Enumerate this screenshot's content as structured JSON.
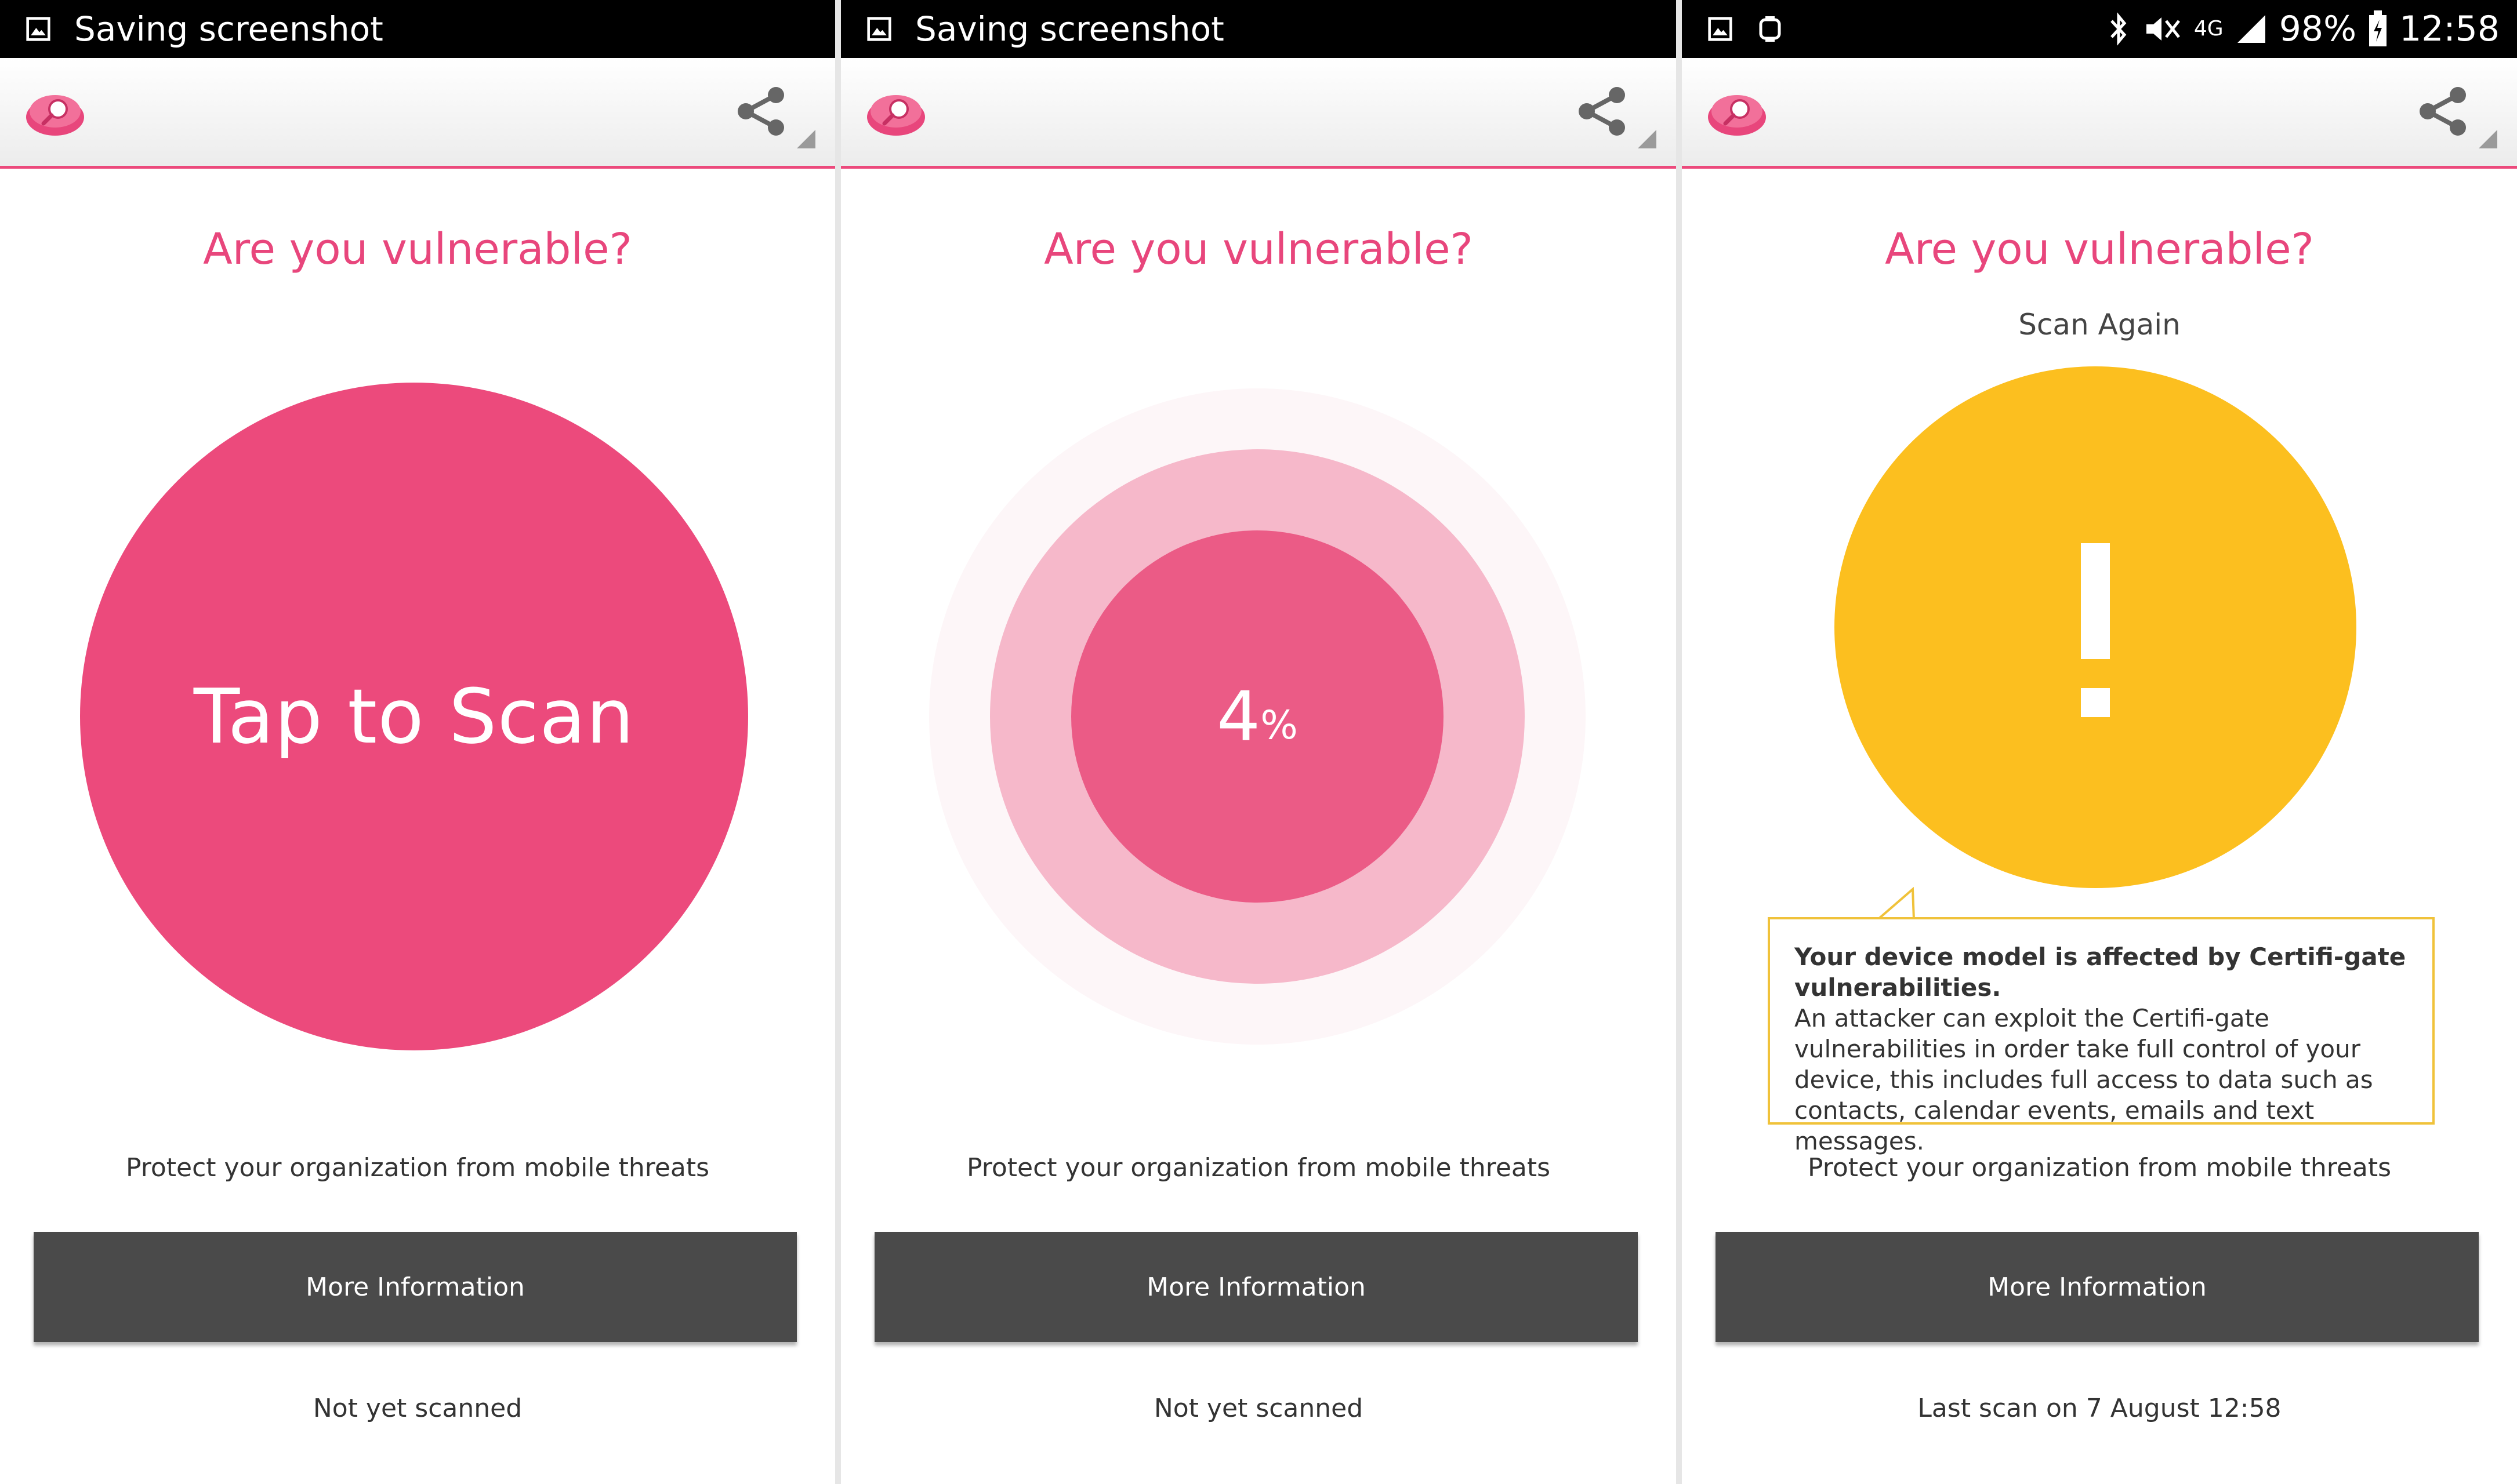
{
  "colors": {
    "accent": "#ec4a7c",
    "progress_light": "#f6b8ca",
    "warning": "#fcbf1f",
    "button": "#4a4a4a"
  },
  "screens": [
    {
      "status_bar": {
        "text": "Saving screenshot"
      },
      "question": "Are you vulnerable?",
      "scan_button_label": "Tap to Scan",
      "tagline": "Protect your organization from mobile threats",
      "more_info_label": "More Information",
      "scan_status": "Not yet scanned"
    },
    {
      "status_bar": {
        "text": "Saving screenshot"
      },
      "question": "Are you vulnerable?",
      "progress": {
        "value": "4",
        "unit": "%"
      },
      "tagline": "Protect your organization from mobile threats",
      "more_info_label": "More Information",
      "scan_status": "Not yet scanned"
    },
    {
      "status_bar": {
        "battery": "98%",
        "time": "12:58",
        "network": "4G"
      },
      "question": "Are you vulnerable?",
      "scan_again_label": "Scan Again",
      "warning": {
        "title": "Your device model is affected by Certifi-gate vulnerabilities.",
        "body": "An attacker can exploit the Certifi-gate vulnerabilities in order take full control of your device, this includes full access to data such as contacts, calendar events, emails and text messages."
      },
      "tagline": "Protect your organization from mobile threats",
      "more_info_label": "More Information",
      "scan_status": "Last scan on 7 August 12:58"
    }
  ],
  "icons": {
    "logo": "app-logo-icon",
    "share": "share-icon",
    "screenshot": "image-icon"
  }
}
